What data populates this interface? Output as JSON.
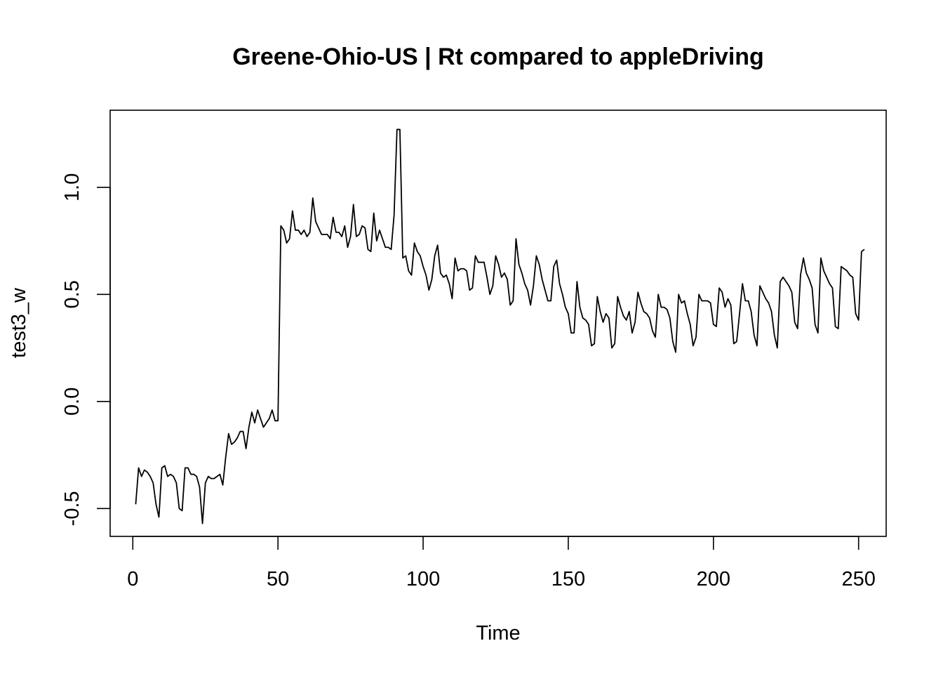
{
  "chart_data": {
    "type": "line",
    "title": "Greene-Ohio-US | Rt compared to appleDriving",
    "xlabel": "Time",
    "ylabel": "test3_w",
    "xlim": [
      -7.8,
      259.5
    ],
    "ylim": [
      -0.63,
      1.36
    ],
    "xticks": [
      0,
      50,
      100,
      150,
      200,
      250
    ],
    "yticks": [
      -0.5,
      0.0,
      0.5,
      1.0
    ],
    "xtick_labels": [
      "0",
      "50",
      "100",
      "150",
      "200",
      "250"
    ],
    "ytick_labels": [
      "-0.5",
      "0.0",
      "0.5",
      "1.0"
    ],
    "grid": false,
    "series": [
      {
        "color": "#000000",
        "x_start": 1,
        "values": [
          -0.48,
          -0.31,
          -0.35,
          -0.32,
          -0.33,
          -0.35,
          -0.38,
          -0.48,
          -0.54,
          -0.31,
          -0.3,
          -0.35,
          -0.34,
          -0.35,
          -0.38,
          -0.5,
          -0.51,
          -0.31,
          -0.31,
          -0.34,
          -0.34,
          -0.35,
          -0.4,
          -0.57,
          -0.38,
          -0.35,
          -0.36,
          -0.36,
          -0.35,
          -0.34,
          -0.39,
          -0.26,
          -0.15,
          -0.2,
          -0.19,
          -0.17,
          -0.14,
          -0.14,
          -0.22,
          -0.12,
          -0.05,
          -0.1,
          -0.04,
          -0.08,
          -0.12,
          -0.1,
          -0.08,
          -0.04,
          -0.09,
          -0.09,
          0.82,
          0.8,
          0.74,
          0.76,
          0.89,
          0.8,
          0.8,
          0.78,
          0.8,
          0.77,
          0.79,
          0.95,
          0.84,
          0.81,
          0.78,
          0.78,
          0.78,
          0.76,
          0.86,
          0.79,
          0.79,
          0.77,
          0.82,
          0.72,
          0.77,
          0.92,
          0.77,
          0.78,
          0.82,
          0.81,
          0.71,
          0.7,
          0.88,
          0.75,
          0.8,
          0.76,
          0.72,
          0.72,
          0.71,
          0.87,
          1.27,
          1.27,
          0.67,
          0.68,
          0.61,
          0.59,
          0.74,
          0.7,
          0.68,
          0.63,
          0.59,
          0.52,
          0.57,
          0.68,
          0.73,
          0.6,
          0.58,
          0.59,
          0.55,
          0.48,
          0.67,
          0.61,
          0.62,
          0.62,
          0.61,
          0.52,
          0.53,
          0.68,
          0.65,
          0.65,
          0.65,
          0.58,
          0.5,
          0.54,
          0.68,
          0.64,
          0.58,
          0.6,
          0.57,
          0.45,
          0.47,
          0.76,
          0.64,
          0.6,
          0.55,
          0.52,
          0.45,
          0.54,
          0.68,
          0.64,
          0.57,
          0.52,
          0.47,
          0.47,
          0.63,
          0.66,
          0.55,
          0.5,
          0.44,
          0.41,
          0.32,
          0.32,
          0.56,
          0.44,
          0.39,
          0.38,
          0.36,
          0.26,
          0.27,
          0.49,
          0.42,
          0.37,
          0.41,
          0.39,
          0.25,
          0.27,
          0.49,
          0.44,
          0.4,
          0.38,
          0.42,
          0.32,
          0.37,
          0.51,
          0.46,
          0.42,
          0.41,
          0.39,
          0.33,
          0.3,
          0.5,
          0.44,
          0.44,
          0.43,
          0.39,
          0.28,
          0.23,
          0.5,
          0.46,
          0.47,
          0.41,
          0.36,
          0.26,
          0.3,
          0.5,
          0.47,
          0.47,
          0.47,
          0.46,
          0.36,
          0.35,
          0.53,
          0.51,
          0.44,
          0.48,
          0.45,
          0.27,
          0.28,
          0.41,
          0.55,
          0.47,
          0.47,
          0.42,
          0.31,
          0.26,
          0.54,
          0.51,
          0.48,
          0.46,
          0.42,
          0.31,
          0.25,
          0.56,
          0.58,
          0.56,
          0.54,
          0.51,
          0.37,
          0.34,
          0.59,
          0.67,
          0.6,
          0.57,
          0.53,
          0.36,
          0.32,
          0.67,
          0.61,
          0.58,
          0.55,
          0.53,
          0.35,
          0.34,
          0.63,
          0.62,
          0.61,
          0.59,
          0.58,
          0.41,
          0.38,
          0.7,
          0.71
        ]
      }
    ]
  }
}
